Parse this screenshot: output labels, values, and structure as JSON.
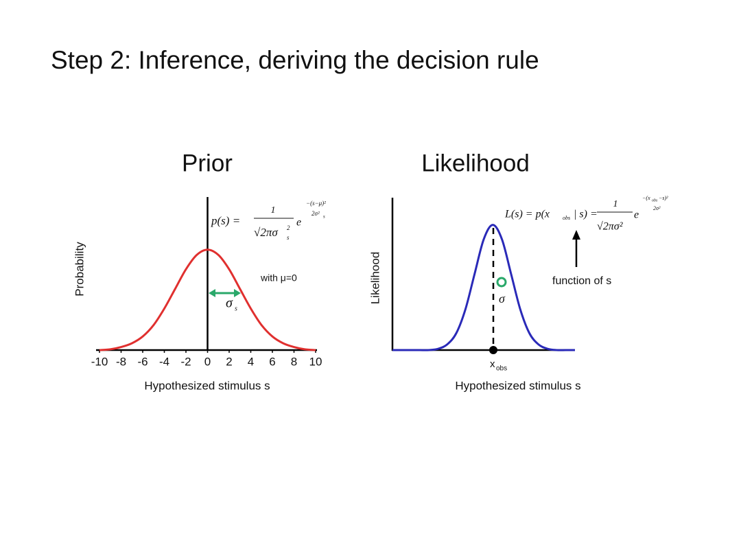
{
  "title": "Step 2: Inference, deriving the decision rule",
  "chart_data": [
    {
      "type": "line",
      "title": "Prior",
      "xlabel": "Hypothesized stimulus s",
      "ylabel": "Probability",
      "x": [
        -10,
        -9,
        -8,
        -7,
        -6,
        -5,
        -4,
        -3,
        -2,
        -1,
        0,
        1,
        2,
        3,
        4,
        5,
        6,
        7,
        8,
        9,
        10
      ],
      "values": [
        0,
        0.001,
        0.004,
        0.009,
        0.018,
        0.033,
        0.055,
        0.081,
        0.107,
        0.126,
        0.133,
        0.126,
        0.107,
        0.081,
        0.055,
        0.033,
        0.018,
        0.009,
        0.004,
        0.001,
        0
      ],
      "color": "#e0302f",
      "xlim": [
        -10,
        10
      ],
      "xticks": [
        -10,
        -8,
        -6,
        -4,
        -2,
        0,
        2,
        4,
        6,
        8,
        10
      ],
      "ylim": [
        0,
        0.2
      ],
      "annotations": {
        "lhs": "p(s) =",
        "numerator": "1",
        "denominator": "√2πσ",
        "denominator_sup": "2",
        "denominator_sub": "s",
        "base": "e",
        "exp_numerator": "−(s−μ)²",
        "exp_denominator": "2σ²",
        "exp_denominator_sub": "s",
        "note": "with μ=0",
        "sigma": "σ",
        "sigma_sub": "s"
      }
    },
    {
      "type": "line",
      "title": "Likelihood",
      "xlabel": "Hypothesized stimulus s",
      "ylabel": "Likelihood",
      "x": [
        0,
        1,
        2,
        3,
        4,
        5,
        6,
        7,
        8,
        9,
        10,
        11,
        12,
        13,
        14,
        15,
        16,
        17,
        18,
        19,
        20
      ],
      "values": [
        0,
        0,
        0,
        0,
        0,
        0.002,
        0.009,
        0.027,
        0.065,
        0.121,
        0.176,
        0.199,
        0.176,
        0.121,
        0.065,
        0.027,
        0.009,
        0.002,
        0,
        0,
        0
      ],
      "color": "#2a2ab8",
      "xlim": [
        0,
        20
      ],
      "ylim": [
        0,
        0.24
      ],
      "annotations": {
        "lhs": "L(s) = p(x",
        "lhs_sub": "obs",
        "lhs_rest": "| s) =",
        "numerator": "1",
        "denominator": "√2πσ²",
        "base": "e",
        "exp_numerator": "−(x",
        "exp_sub": "obs",
        "exp_rest": "−s)²",
        "exp_denominator": "2σ²",
        "note": "function of s",
        "sigma": "σ",
        "point": "x",
        "point_sub": "obs"
      }
    }
  ]
}
